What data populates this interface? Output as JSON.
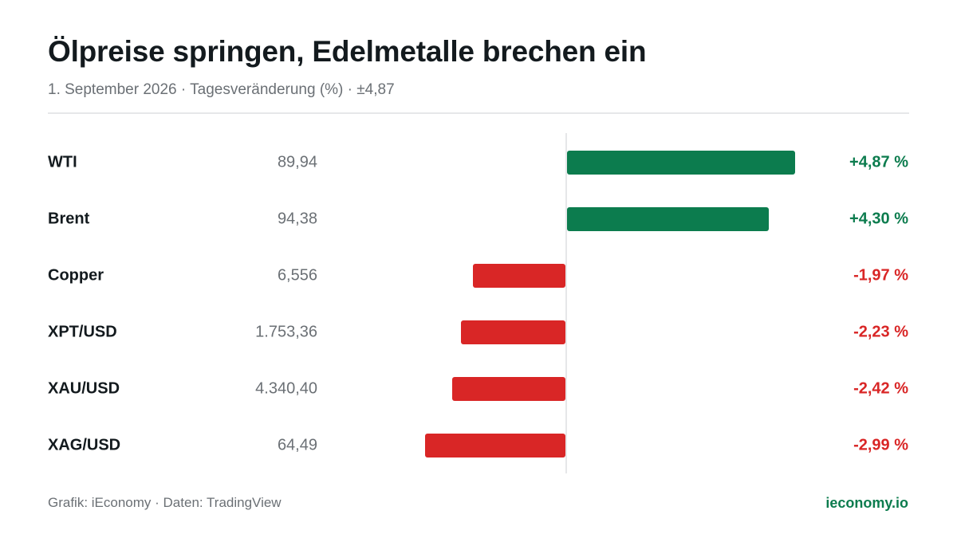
{
  "header": {
    "title": "Ölpreise springen, Edelmetalle brechen ein",
    "subtitle": "1. September 2026 · Tagesveränderung (%) · ±4,87"
  },
  "footer": {
    "source": "Grafik: iEconomy · Daten: TradingView",
    "brand": "ieconomy.io"
  },
  "colors": {
    "positive": "#0c7c4e",
    "negative": "#d92626",
    "brand": "#0c7c4e"
  },
  "chart_data": {
    "type": "bar",
    "orientation": "horizontal",
    "title": "Ölpreise springen, Edelmetalle brechen ein",
    "subtitle": "1. September 2026 · Tagesveränderung (%) · ±4,87",
    "xlim": [
      -4.87,
      4.87
    ],
    "grid": false,
    "rows": [
      {
        "name": "WTI",
        "price": "89,94",
        "change": 4.87,
        "change_label": "+4,87 %"
      },
      {
        "name": "Brent",
        "price": "94,38",
        "change": 4.3,
        "change_label": "+4,30 %"
      },
      {
        "name": "Copper",
        "price": "6,556",
        "change": -1.97,
        "change_label": "-1,97 %"
      },
      {
        "name": "XPT/USD",
        "price": "1.753,36",
        "change": -2.23,
        "change_label": "-2,23 %"
      },
      {
        "name": "XAU/USD",
        "price": "4.340,40",
        "change": -2.42,
        "change_label": "-2,42 %"
      },
      {
        "name": "XAG/USD",
        "price": "64,49",
        "change": -2.99,
        "change_label": "-2,99 %"
      }
    ]
  }
}
